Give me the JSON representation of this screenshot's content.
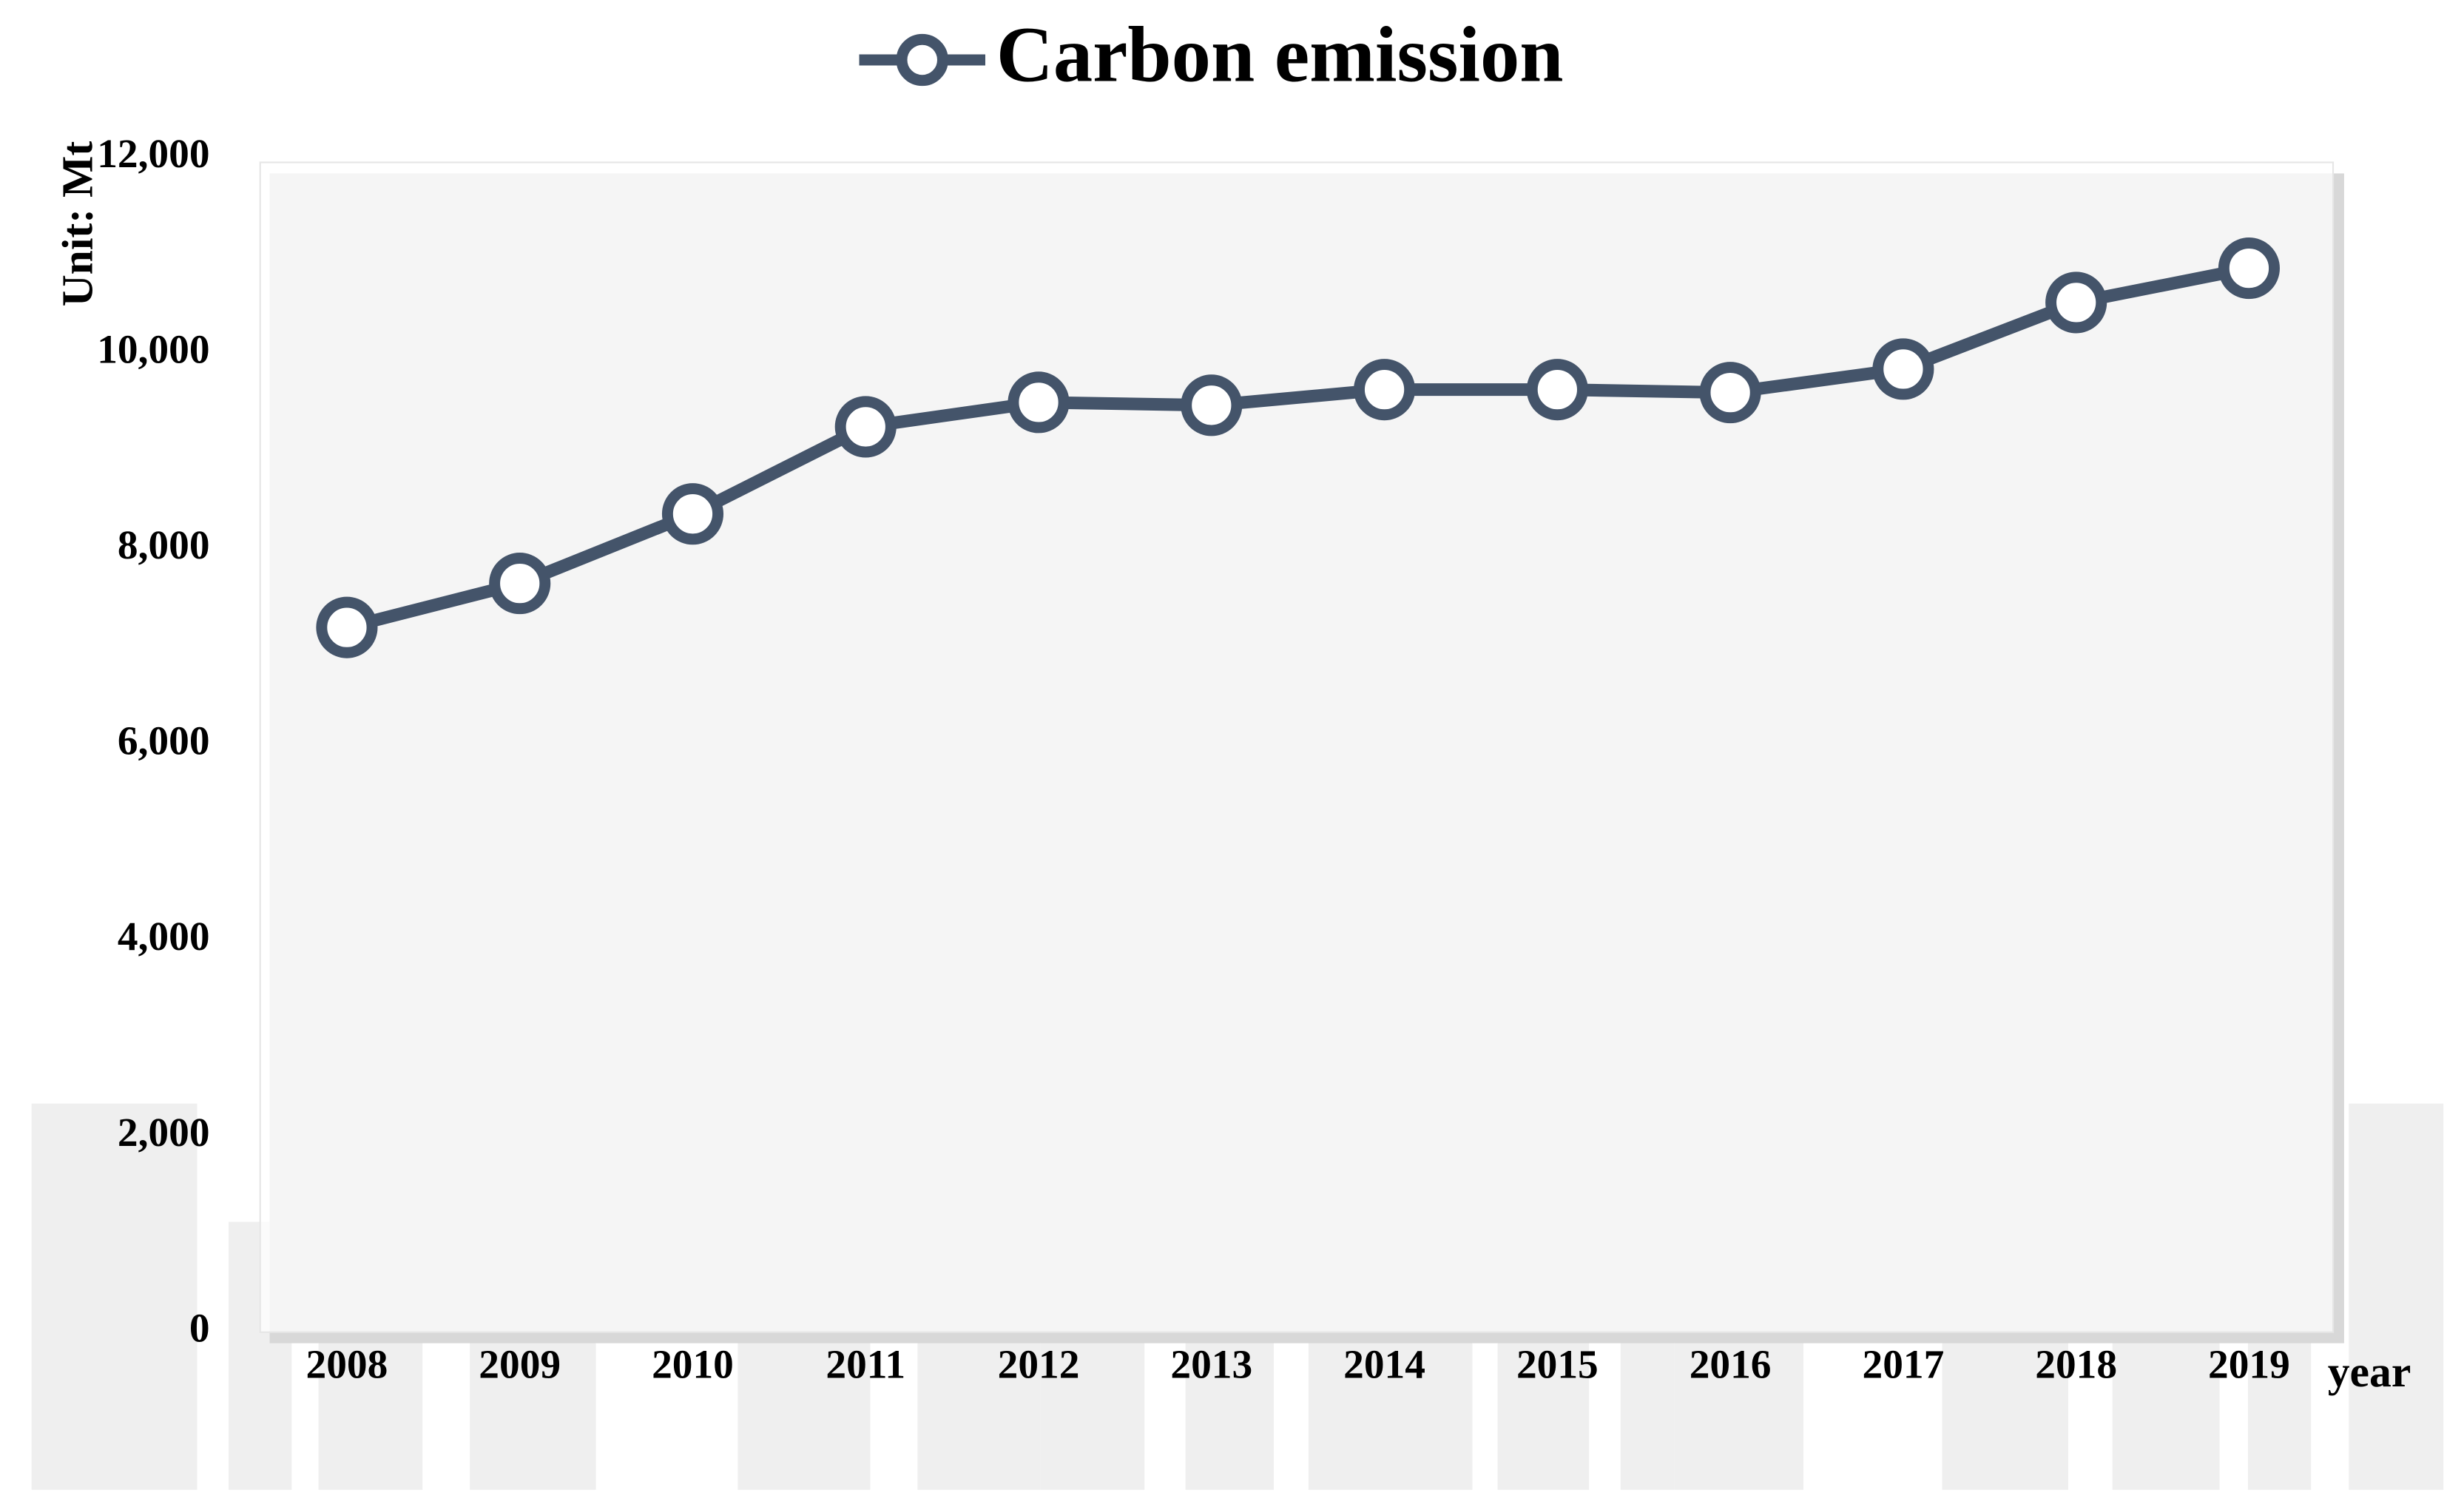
{
  "chart_data": {
    "type": "line",
    "categories": [
      "2008",
      "2009",
      "2010",
      "2011",
      "2012",
      "2013",
      "2014",
      "2015",
      "2016",
      "2017",
      "2018",
      "2019"
    ],
    "series": [
      {
        "name": "Carbon emission",
        "color": "#44546a",
        "values": [
          7200,
          7650,
          8360,
          9250,
          9500,
          9470,
          9630,
          9630,
          9600,
          9840,
          10520,
          10870
        ]
      }
    ],
    "ylabel": "Unit: Mt",
    "xlabel": "year",
    "ylim": [
      0,
      12000
    ],
    "yticks": [
      0,
      {
        "value": 2000,
        "label": "2,000"
      },
      {
        "value": 4000,
        "label": "4,000"
      },
      {
        "value": 6000,
        "label": "6,000"
      },
      {
        "value": 8000,
        "label": "8,000"
      },
      {
        "value": 10000,
        "label": "10,000"
      },
      {
        "value": 12000,
        "label": "12,000"
      }
    ],
    "legend": "top",
    "grid": false
  }
}
